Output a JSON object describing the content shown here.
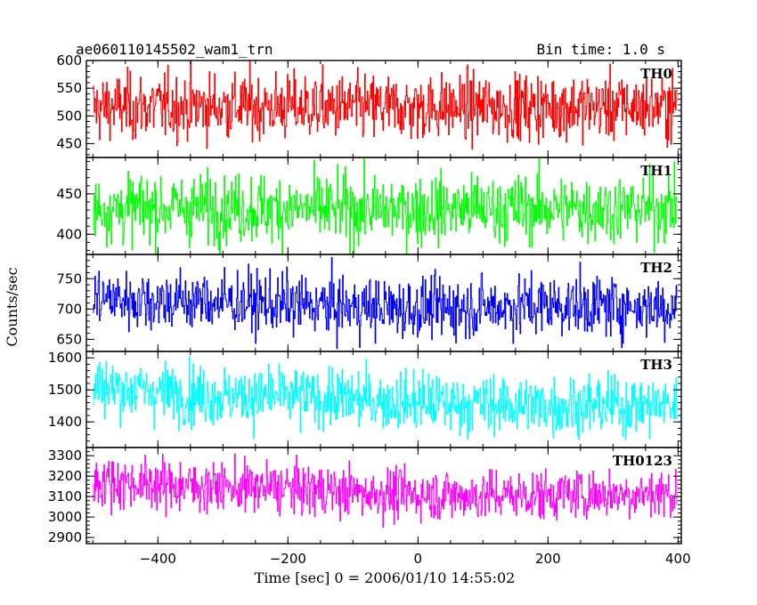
{
  "header": {
    "title": "ae060110145502_wam1_trn",
    "bin_time": "Bin time: 1.0 s"
  },
  "chart_data": {
    "type": "line",
    "title": "ae060110145502_wam1_trn",
    "bin_time_label": "Bin time: 1.0 s",
    "xlabel": "Time [sec] 0 = 2006/01/10 14:55:02",
    "ylabel": "Counts/sec",
    "xlim": [
      -510,
      405
    ],
    "x_ticks": [
      -400,
      -200,
      0,
      200,
      400
    ],
    "x_tick_labels": [
      "−400",
      "−200",
      "0",
      "200",
      "400"
    ],
    "x_data_range": [
      -500,
      398
    ],
    "bin_time_s": 1.0,
    "grid": false,
    "series": [
      {
        "name": "TH0",
        "color": "#ff0000",
        "ylim": [
          425,
          600
        ],
        "y_ticks": [
          450,
          500,
          550,
          600
        ],
        "mean": 515,
        "typical_range": [
          440,
          595
        ],
        "profile": [
          [
            -500,
            515
          ],
          [
            -300,
            518
          ],
          [
            -100,
            515
          ],
          [
            100,
            516
          ],
          [
            300,
            517
          ],
          [
            398,
            516
          ]
        ]
      },
      {
        "name": "TH1",
        "color": "#00ff00",
        "ylim": [
          375,
          495
        ],
        "y_ticks": [
          400,
          450
        ],
        "mean": 432,
        "typical_range": [
          380,
          490
        ],
        "profile": [
          [
            -500,
            432
          ],
          [
            -300,
            433
          ],
          [
            -100,
            430
          ],
          [
            100,
            432
          ],
          [
            300,
            432
          ],
          [
            398,
            433
          ]
        ]
      },
      {
        "name": "TH2",
        "color": "#0000ff",
        "ylim": [
          630,
          790
        ],
        "y_ticks": [
          650,
          700,
          750
        ],
        "mean": 708,
        "typical_range": [
          650,
          780
        ],
        "profile": [
          [
            -500,
            718
          ],
          [
            -400,
            714
          ],
          [
            -300,
            712
          ],
          [
            -100,
            703
          ],
          [
            0,
            701
          ],
          [
            100,
            703
          ],
          [
            200,
            707
          ],
          [
            300,
            705
          ],
          [
            398,
            703
          ]
        ]
      },
      {
        "name": "TH3",
        "color": "#00ffff",
        "ylim": [
          1320,
          1620
        ],
        "y_ticks": [
          1400,
          1500,
          1600
        ],
        "mean": 1470,
        "typical_range": [
          1360,
          1600
        ],
        "profile": [
          [
            -500,
            1510
          ],
          [
            -400,
            1495
          ],
          [
            -300,
            1480
          ],
          [
            -200,
            1480
          ],
          [
            -100,
            1470
          ],
          [
            0,
            1462
          ],
          [
            100,
            1455
          ],
          [
            200,
            1450
          ],
          [
            300,
            1452
          ],
          [
            398,
            1452
          ]
        ]
      },
      {
        "name": "TH0123",
        "color": "#ff00ff",
        "ylim": [
          2870,
          3340
        ],
        "y_ticks": [
          2900,
          3000,
          3100,
          3200,
          3300
        ],
        "mean": 3130,
        "typical_range": [
          2960,
          3280
        ],
        "profile": [
          [
            -500,
            3175
          ],
          [
            -400,
            3160
          ],
          [
            -300,
            3145
          ],
          [
            -200,
            3140
          ],
          [
            -100,
            3120
          ],
          [
            0,
            3110
          ],
          [
            100,
            3105
          ],
          [
            200,
            3110
          ],
          [
            300,
            3115
          ],
          [
            398,
            3115
          ]
        ]
      }
    ]
  }
}
